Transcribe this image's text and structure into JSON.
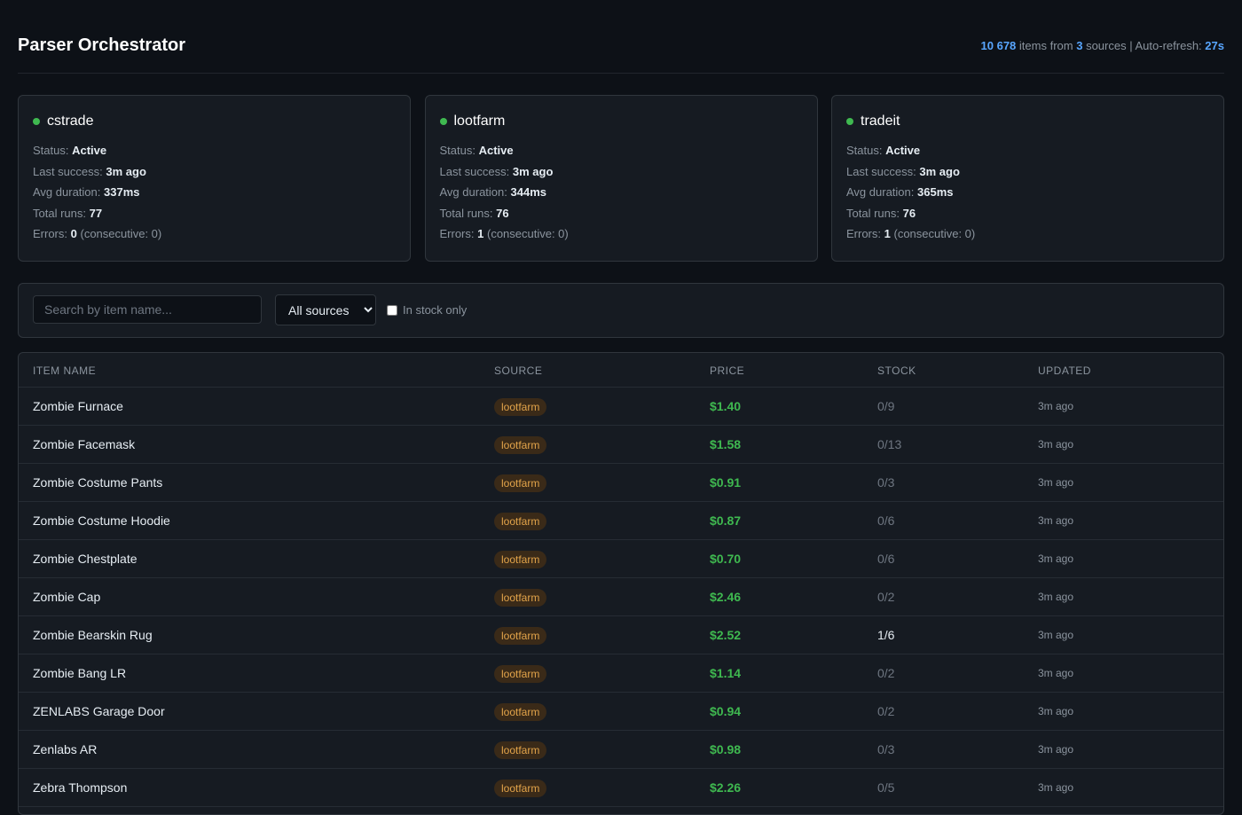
{
  "header": {
    "title": "Parser Orchestrator",
    "items_count": "10 678",
    "items_text": "items from",
    "sources_count": "3",
    "sources_text": "sources",
    "separator": "|",
    "refresh_label": "Auto-refresh:",
    "refresh_value": "27s"
  },
  "parser_labels": {
    "status": "Status:",
    "last_success": "Last success:",
    "avg_duration": "Avg duration:",
    "total_runs": "Total runs:",
    "errors": "Errors:"
  },
  "parsers": [
    {
      "name": "cstrade",
      "status": "Active",
      "last_success": "3m ago",
      "avg_duration": "337ms",
      "total_runs": "77",
      "errors": "0",
      "consecutive": "(consecutive: 0)"
    },
    {
      "name": "lootfarm",
      "status": "Active",
      "last_success": "3m ago",
      "avg_duration": "344ms",
      "total_runs": "76",
      "errors": "1",
      "consecutive": "(consecutive: 0)"
    },
    {
      "name": "tradeit",
      "status": "Active",
      "last_success": "3m ago",
      "avg_duration": "365ms",
      "total_runs": "76",
      "errors": "1",
      "consecutive": "(consecutive: 0)"
    }
  ],
  "filters": {
    "search_placeholder": "Search by item name...",
    "source_select": "All sources",
    "in_stock_label": "In stock only"
  },
  "table": {
    "columns": [
      "ITEM NAME",
      "SOURCE",
      "PRICE",
      "STOCK",
      "UPDATED"
    ],
    "rows": [
      [
        "Zombie Furnace",
        "lootfarm",
        "$1.40",
        "0/9",
        "3m ago"
      ],
      [
        "Zombie Facemask",
        "lootfarm",
        "$1.58",
        "0/13",
        "3m ago"
      ],
      [
        "Zombie Costume Pants",
        "lootfarm",
        "$0.91",
        "0/3",
        "3m ago"
      ],
      [
        "Zombie Costume Hoodie",
        "lootfarm",
        "$0.87",
        "0/6",
        "3m ago"
      ],
      [
        "Zombie Chestplate",
        "lootfarm",
        "$0.70",
        "0/6",
        "3m ago"
      ],
      [
        "Zombie Cap",
        "lootfarm",
        "$2.46",
        "0/2",
        "3m ago"
      ],
      [
        "Zombie Bearskin Rug",
        "lootfarm",
        "$2.52",
        "1/6",
        "3m ago"
      ],
      [
        "Zombie Bang LR",
        "lootfarm",
        "$1.14",
        "0/2",
        "3m ago"
      ],
      [
        "ZENLABS Garage Door",
        "lootfarm",
        "$0.94",
        "0/2",
        "3m ago"
      ],
      [
        "Zenlabs AR",
        "lootfarm",
        "$0.98",
        "0/3",
        "3m ago"
      ],
      [
        "Zebra Thompson",
        "lootfarm",
        "$2.26",
        "0/5",
        "3m ago"
      ]
    ]
  }
}
